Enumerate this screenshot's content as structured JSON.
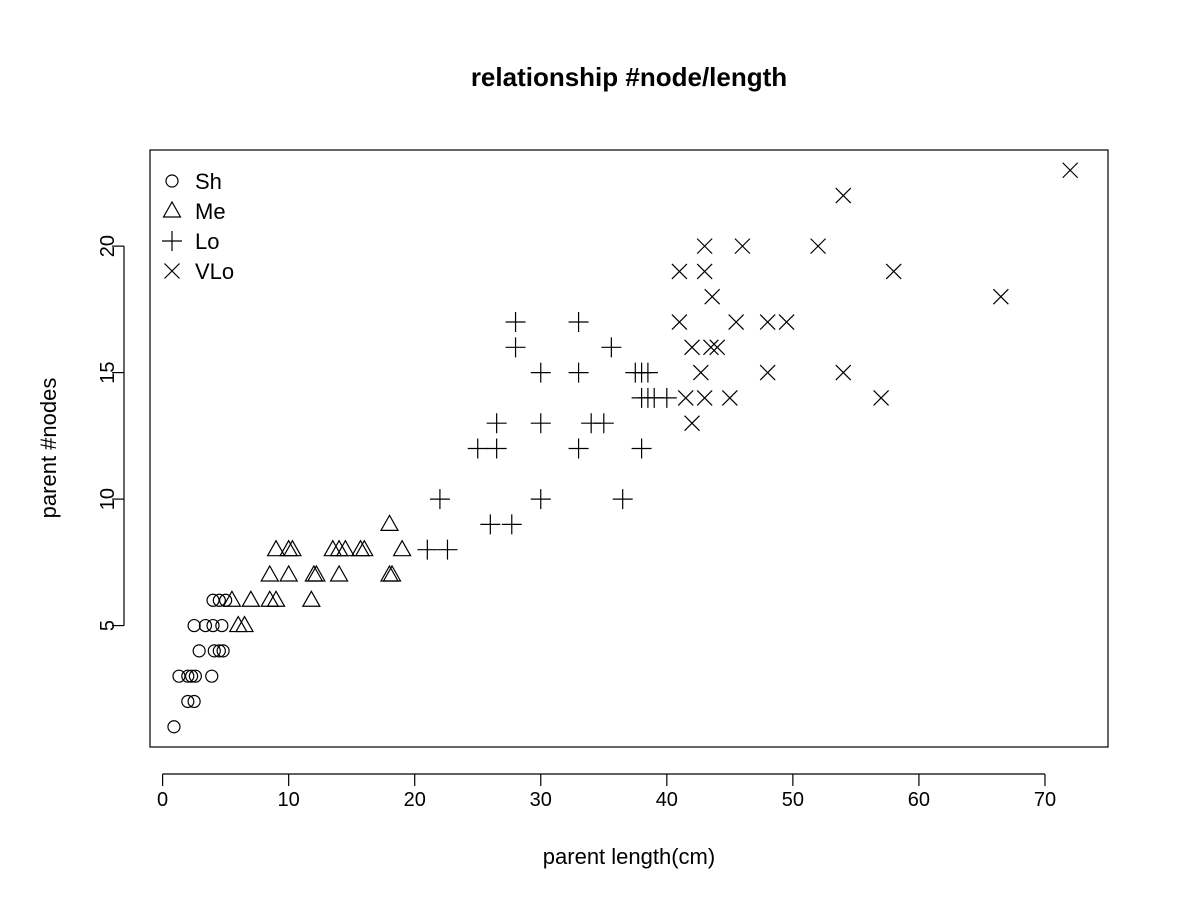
{
  "chart_data": {
    "type": "scatter",
    "title": "relationship #node/length",
    "xlabel": "parent length(cm)",
    "ylabel": "parent #nodes",
    "xlim": [
      -1,
      75
    ],
    "ylim": [
      0.2,
      23.8
    ],
    "x_ticks": [
      0,
      10,
      20,
      30,
      40,
      50,
      60,
      70
    ],
    "y_ticks": [
      5,
      10,
      15,
      20
    ],
    "grid": false,
    "legend_position": "top-left",
    "series": [
      {
        "name": "Sh",
        "marker": "circle",
        "points": [
          [
            0.9,
            1
          ],
          [
            1.3,
            3
          ],
          [
            2.0,
            3
          ],
          [
            2.3,
            3
          ],
          [
            2.6,
            3
          ],
          [
            2.0,
            2
          ],
          [
            2.5,
            2
          ],
          [
            2.5,
            5
          ],
          [
            3.4,
            5
          ],
          [
            4.0,
            5
          ],
          [
            4.7,
            5
          ],
          [
            2.9,
            4
          ],
          [
            4.1,
            4
          ],
          [
            4.5,
            4
          ],
          [
            4.8,
            4
          ],
          [
            4.0,
            6
          ],
          [
            4.5,
            6
          ],
          [
            5.0,
            6
          ],
          [
            3.9,
            3
          ]
        ]
      },
      {
        "name": "Me",
        "marker": "triangle",
        "points": [
          [
            5.5,
            6
          ],
          [
            7.0,
            6
          ],
          [
            8.5,
            6
          ],
          [
            9.0,
            6
          ],
          [
            11.8,
            6
          ],
          [
            6.0,
            5
          ],
          [
            6.5,
            5
          ],
          [
            8.5,
            7
          ],
          [
            10.0,
            7
          ],
          [
            12.0,
            7
          ],
          [
            12.2,
            7
          ],
          [
            14.0,
            7
          ],
          [
            18.0,
            7
          ],
          [
            18.2,
            7
          ],
          [
            9.0,
            8
          ],
          [
            10.0,
            8
          ],
          [
            10.3,
            8
          ],
          [
            13.5,
            8
          ],
          [
            14.0,
            8
          ],
          [
            14.5,
            8
          ],
          [
            15.7,
            8
          ],
          [
            16.0,
            8
          ],
          [
            19.0,
            8
          ],
          [
            18.0,
            9
          ]
        ]
      },
      {
        "name": "Lo",
        "marker": "plus",
        "points": [
          [
            21.0,
            8
          ],
          [
            22.6,
            8
          ],
          [
            22.0,
            10
          ],
          [
            26.0,
            9
          ],
          [
            27.7,
            9
          ],
          [
            25.0,
            12
          ],
          [
            26.5,
            12
          ],
          [
            26.5,
            13
          ],
          [
            30.0,
            13
          ],
          [
            30.0,
            10
          ],
          [
            30.0,
            15
          ],
          [
            28.0,
            16
          ],
          [
            28.0,
            17
          ],
          [
            33.0,
            17
          ],
          [
            33.0,
            15
          ],
          [
            33.0,
            12
          ],
          [
            34.0,
            13
          ],
          [
            35.0,
            13
          ],
          [
            35.6,
            16
          ],
          [
            36.5,
            10
          ],
          [
            37.5,
            15
          ],
          [
            38.0,
            15
          ],
          [
            38.5,
            15
          ],
          [
            38.0,
            14
          ],
          [
            38.5,
            14
          ],
          [
            39.0,
            14
          ],
          [
            40.0,
            14
          ],
          [
            38.0,
            12
          ]
        ]
      },
      {
        "name": "VLo",
        "marker": "x",
        "points": [
          [
            41.0,
            19
          ],
          [
            41.0,
            17
          ],
          [
            41.5,
            14
          ],
          [
            42.0,
            16
          ],
          [
            42.0,
            13
          ],
          [
            42.7,
            15
          ],
          [
            43.0,
            20
          ],
          [
            43.0,
            19
          ],
          [
            43.0,
            14
          ],
          [
            43.5,
            16
          ],
          [
            43.6,
            18
          ],
          [
            44.0,
            16
          ],
          [
            45.0,
            14
          ],
          [
            45.5,
            17
          ],
          [
            46.0,
            20
          ],
          [
            48.0,
            17
          ],
          [
            48.0,
            15
          ],
          [
            49.5,
            17
          ],
          [
            52.0,
            20
          ],
          [
            54.0,
            22
          ],
          [
            54.0,
            15
          ],
          [
            57.0,
            14
          ],
          [
            58.0,
            19
          ],
          [
            66.5,
            18
          ],
          [
            72.0,
            23
          ]
        ]
      }
    ]
  }
}
